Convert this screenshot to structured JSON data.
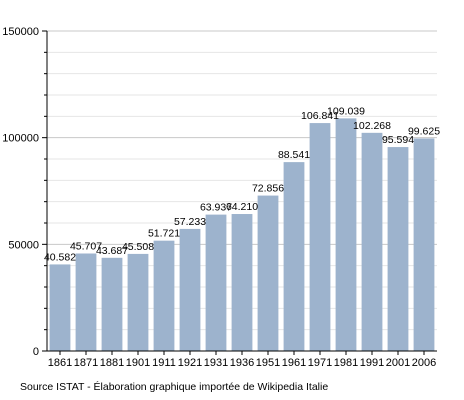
{
  "chart_data": {
    "type": "bar",
    "title": "",
    "xlabel": "",
    "ylabel": "",
    "ylim": [
      0,
      150000
    ],
    "yticks": [
      0,
      50000,
      100000,
      150000
    ],
    "grid": true,
    "bar_color": "#9db3cd",
    "categories": [
      "1861",
      "1871",
      "1881",
      "1901",
      "1911",
      "1921",
      "1931",
      "1936",
      "1951",
      "1961",
      "1971",
      "1981",
      "1991",
      "2001",
      "2006"
    ],
    "values": [
      40582,
      45707,
      43687,
      45508,
      51721,
      57233,
      63937,
      64210,
      72856,
      88541,
      106841,
      109039,
      102268,
      95594,
      99625
    ],
    "value_labels": [
      "40.582",
      "45.707",
      "43.687",
      "45.508",
      "51.721",
      "57.233",
      "63.937",
      "64.210",
      "72.856",
      "88.541",
      "106.841",
      "109.039",
      "102.268",
      "95.594",
      "99.625"
    ]
  },
  "source_text": "Source ISTAT - Élaboration graphique importée de Wikipedia Italie"
}
